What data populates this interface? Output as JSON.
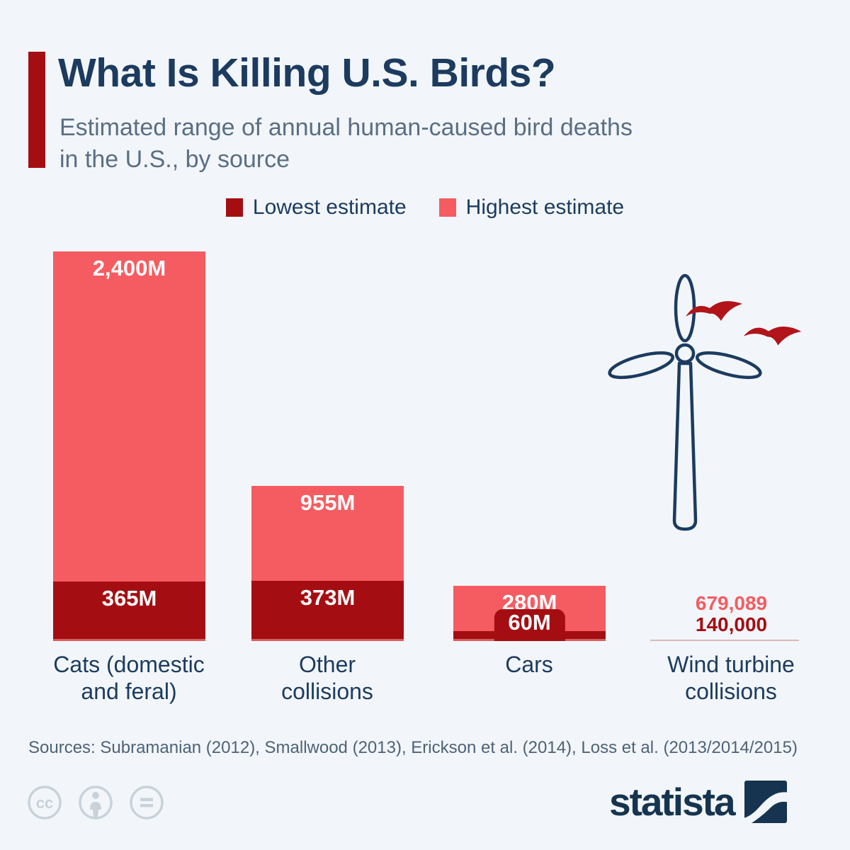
{
  "page": {
    "background": "#f2f6fa"
  },
  "header": {
    "title": "What Is Killing U.S. Birds?",
    "subtitle": "Estimated range of annual human-caused bird deaths\nin the U.S., by source",
    "accent_color": "#a40e13"
  },
  "legend": {
    "items": [
      {
        "label": "Lowest estimate",
        "color": "#a40e13"
      },
      {
        "label": "Highest estimate",
        "color": "#f55c61"
      }
    ]
  },
  "chart_data": {
    "type": "bar",
    "title": "What Is Killing U.S. Birds?",
    "subtitle": "Estimated range of annual human-caused bird deaths in the U.S., by source",
    "categories": [
      "Cats (domestic and feral)",
      "Other collisions",
      "Cars",
      "Wind turbine collisions"
    ],
    "unit": "millions of birds per year",
    "ylim": [
      0,
      2400
    ],
    "grid": false,
    "legend_position": "top",
    "series": [
      {
        "name": "Lowest estimate",
        "color": "#a40e13",
        "values": [
          365,
          373,
          60,
          0.14
        ],
        "labels": [
          "365M",
          "373M",
          "60M",
          "140,000"
        ]
      },
      {
        "name": "Highest estimate",
        "color": "#f55c61",
        "values": [
          2400,
          955,
          280,
          0.679089
        ],
        "labels": [
          "2,400M",
          "955M",
          "280M",
          "679,089"
        ]
      }
    ],
    "notes": "Wind turbine collision values are shown as text beside a wind turbine illustration instead of bars"
  },
  "illustration": {
    "turbine_color": "#1c3b5f",
    "bird_color": "#b11419"
  },
  "sources": "Sources: Subramanian (2012), Smallwood (2013), Erickson et al. (2014), Loss et al. (2013/2014/2015)",
  "footer": {
    "brand": "statista",
    "brand_color": "#16344f",
    "license_icons": [
      "cc-icon",
      "attribution-icon",
      "no-derivatives-icon"
    ],
    "icon_color": "#c9d2da"
  }
}
